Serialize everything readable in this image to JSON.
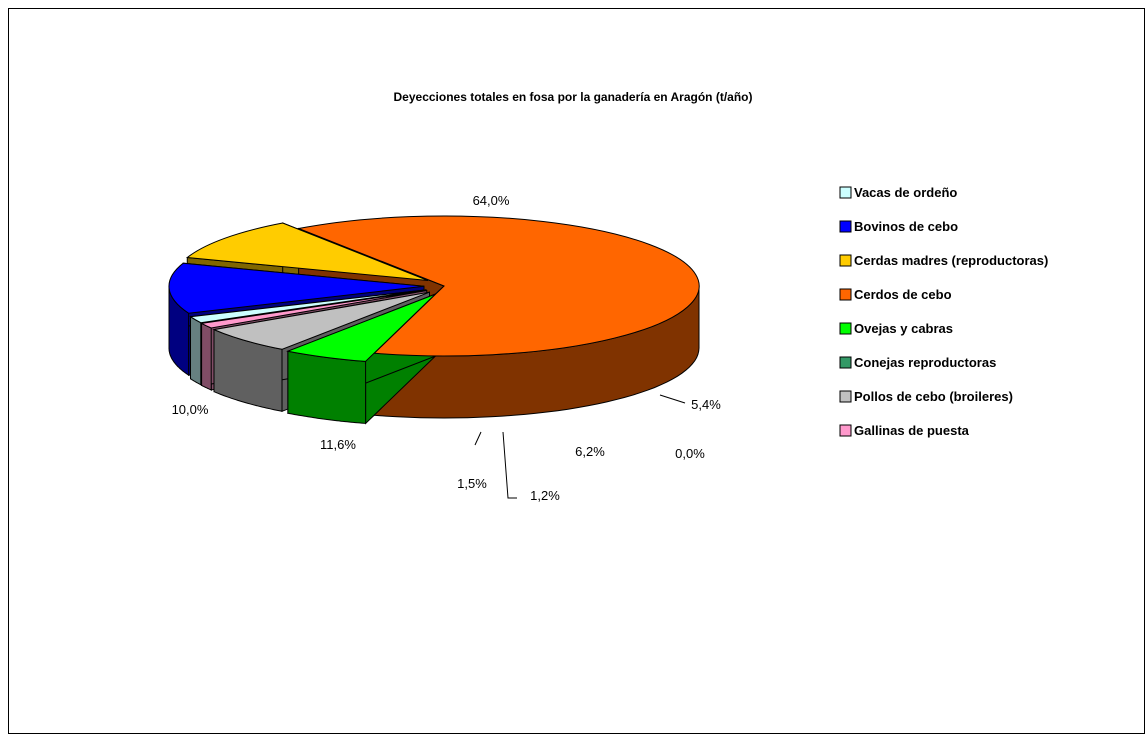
{
  "chart_data": {
    "type": "pie",
    "title": "Deyecciones totales en fosa por la ganadería en Aragón (t/año)",
    "legend_position": "right",
    "slices": [
      {
        "name": "Vacas de ordeño",
        "value": 1.5,
        "label": "1,5%",
        "color": "#CCFFFF"
      },
      {
        "name": "Bovinos de cebo",
        "value": 11.6,
        "label": "11,6%",
        "color": "#0000FF"
      },
      {
        "name": "Cerdas madres (reproductoras)",
        "value": 10.0,
        "label": "10,0%",
        "color": "#FFCC00"
      },
      {
        "name": "Cerdos de cebo",
        "value": 64.0,
        "label": "64,0%",
        "color": "#FF6600"
      },
      {
        "name": "Ovejas y cabras",
        "value": 5.4,
        "label": "5,4%",
        "color": "#00FF00"
      },
      {
        "name": "Conejas reproductoras",
        "value": 0.0,
        "label": "0,0%",
        "color": "#339966"
      },
      {
        "name": "Pollos de cebo (broileres)",
        "value": 6.2,
        "label": "6,2%",
        "color": "#C0C0C0"
      },
      {
        "name": "Gallinas de puesta",
        "value": 1.2,
        "label": "1,2%",
        "color": "#FF99CC"
      }
    ]
  }
}
